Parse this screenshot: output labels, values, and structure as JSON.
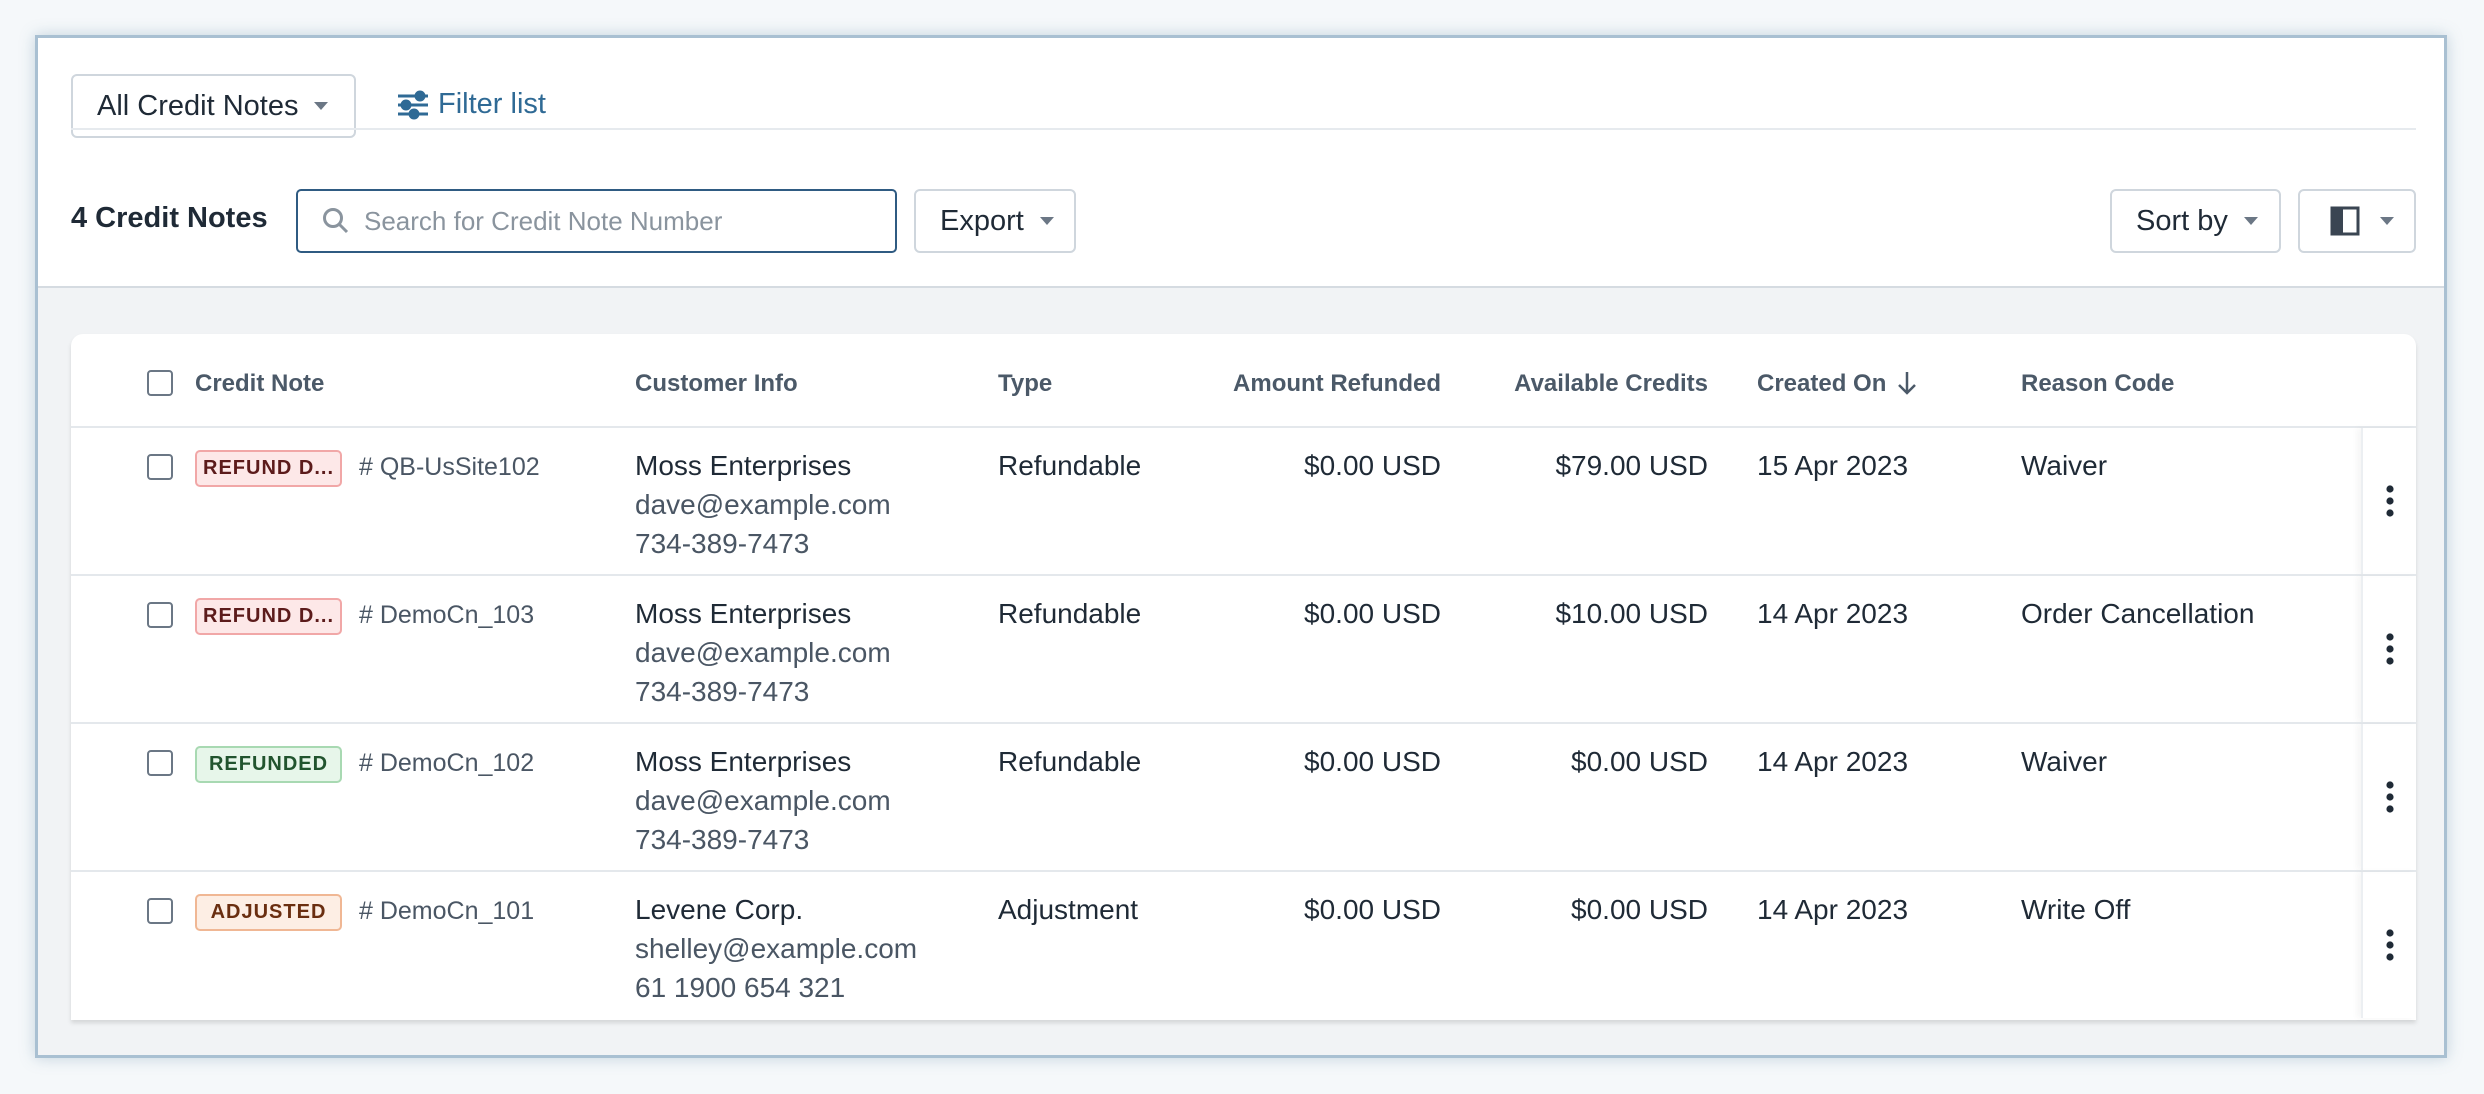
{
  "toolbar": {
    "view_dropdown": "All Credit Notes",
    "filter_link": "Filter list",
    "count_label": "4 Credit Notes",
    "search_placeholder": "Search for Credit Note Number",
    "export_button": "Export",
    "sort_button": "Sort by"
  },
  "table": {
    "columns": [
      "Credit Note",
      "Customer Info",
      "Type",
      "Amount Refunded",
      "Available Credits",
      "Created On",
      "Reason Code"
    ],
    "rows": [
      {
        "status": "REFUND D...",
        "number": "# QB-UsSite102",
        "customer": "Moss Enterprises",
        "email": "dave@example.com",
        "phone": "734-389-7473",
        "type": "Refundable",
        "amount_refunded": "$0.00 USD",
        "available_credits": "$79.00 USD",
        "created_on": "15 Apr 2023",
        "reason_code": "Waiver"
      },
      {
        "status": "REFUND D...",
        "number": "# DemoCn_103",
        "customer": "Moss Enterprises",
        "email": "dave@example.com",
        "phone": "734-389-7473",
        "type": "Refundable",
        "amount_refunded": "$0.00 USD",
        "available_credits": "$10.00 USD",
        "created_on": "14 Apr 2023",
        "reason_code": "Order Cancellation"
      },
      {
        "status": "REFUNDED",
        "number": "# DemoCn_102",
        "customer": "Moss Enterprises",
        "email": "dave@example.com",
        "phone": "734-389-7473",
        "type": "Refundable",
        "amount_refunded": "$0.00 USD",
        "available_credits": "$0.00 USD",
        "created_on": "14 Apr 2023",
        "reason_code": "Waiver"
      },
      {
        "status": "ADJUSTED",
        "number": "# DemoCn_101",
        "customer": "Levene Corp.",
        "email": "shelley@example.com",
        "phone": "61 1900 654 321",
        "type": "Adjustment",
        "amount_refunded": "$0.00 USD",
        "available_credits": "$0.00 USD",
        "created_on": "14 Apr 2023",
        "reason_code": "Write Off"
      }
    ]
  }
}
